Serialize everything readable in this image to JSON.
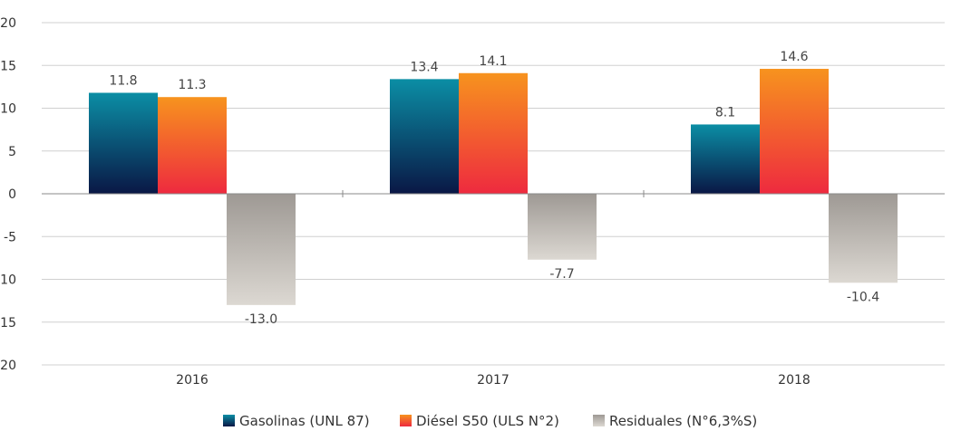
{
  "chart_data": {
    "type": "bar",
    "categories": [
      "2016",
      "2017",
      "2018"
    ],
    "series": [
      {
        "name": "Gasolinas (UNL 87)",
        "values": [
          11.8,
          13.4,
          8.1
        ],
        "color_top": "#0b8ea5",
        "color_bottom": "#0a1745"
      },
      {
        "name": "Diésel S50 (ULS N°2)",
        "values": [
          11.3,
          14.1,
          14.6
        ],
        "color_top": "#f7931e",
        "color_bottom": "#ee2a3f"
      },
      {
        "name": "Residuales (N°6,3%S)",
        "values": [
          -13.0,
          -7.7,
          -10.4
        ],
        "color_top": "#9e9994",
        "color_bottom": "#dcd8d2"
      }
    ],
    "data_labels": [
      [
        "11.8",
        "13.4",
        "8.1"
      ],
      [
        "11.3",
        "14.1",
        "14.6"
      ],
      [
        "-13.0",
        "-7.7",
        "-10.4"
      ]
    ],
    "y_ticks": [
      20,
      15,
      10,
      5,
      0,
      -5,
      -10,
      -15,
      -20
    ],
    "y_tick_labels": [
      "20",
      "15",
      "10",
      "5",
      "0",
      "-5",
      "-10",
      "-15",
      "-20"
    ],
    "ylim": [
      -20,
      20
    ],
    "grid": true,
    "legend_position": "bottom-center",
    "title": "",
    "xlabel": "",
    "ylabel": ""
  }
}
